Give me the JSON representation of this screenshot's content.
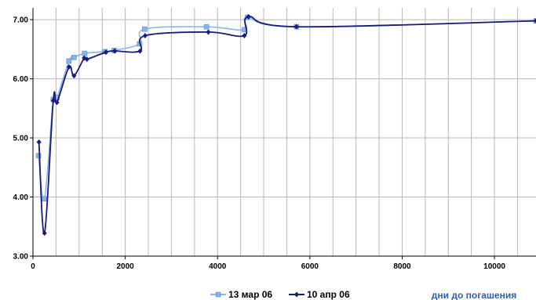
{
  "chart_data": {
    "type": "line",
    "title": "",
    "xlabel": "дни до погашения",
    "ylabel": "",
    "xlim": [
      0,
      10900
    ],
    "ylim": [
      3.0,
      7.2
    ],
    "x_ticks": [
      0,
      2000,
      4000,
      6000,
      8000,
      10000
    ],
    "x_tick_labels": [
      "0",
      "2000",
      "4000",
      "6000",
      "8000",
      "10000"
    ],
    "y_ticks": [
      3.0,
      4.0,
      5.0,
      6.0,
      7.0
    ],
    "y_tick_labels": [
      "3.00",
      "4.00",
      "5.00",
      "6.00",
      "7.00"
    ],
    "x_grid_step": 500,
    "grid": true,
    "legend_position": "bottom-center",
    "series": [
      {
        "name": "13 мар 06",
        "color": "#87b5e8",
        "marker": "square",
        "points": [
          [
            120,
            4.7
          ],
          [
            250,
            3.97
          ],
          [
            440,
            5.65
          ],
          [
            520,
            5.68
          ],
          [
            780,
            6.3
          ],
          [
            890,
            6.36
          ],
          [
            1120,
            6.43
          ],
          [
            1560,
            6.46
          ],
          [
            1760,
            6.48
          ],
          [
            2310,
            6.59
          ],
          [
            2420,
            6.84
          ],
          [
            3760,
            6.88
          ],
          [
            4580,
            6.83
          ],
          [
            4650,
            7.04
          ],
          [
            5710,
            6.88
          ],
          [
            10900,
            6.98
          ]
        ]
      },
      {
        "name": "10 апр 06",
        "color": "#1a1a7a",
        "marker": "diamond",
        "points": [
          [
            130,
            4.93
          ],
          [
            250,
            3.39
          ],
          [
            440,
            5.63
          ],
          [
            520,
            5.6
          ],
          [
            780,
            6.2
          ],
          [
            890,
            6.05
          ],
          [
            1110,
            6.35
          ],
          [
            1170,
            6.33
          ],
          [
            1580,
            6.45
          ],
          [
            1770,
            6.47
          ],
          [
            2320,
            6.47
          ],
          [
            2430,
            6.73
          ],
          [
            3800,
            6.79
          ],
          [
            4580,
            6.73
          ],
          [
            4670,
            7.05
          ],
          [
            5710,
            6.88
          ],
          [
            10900,
            6.98
          ]
        ]
      }
    ]
  }
}
